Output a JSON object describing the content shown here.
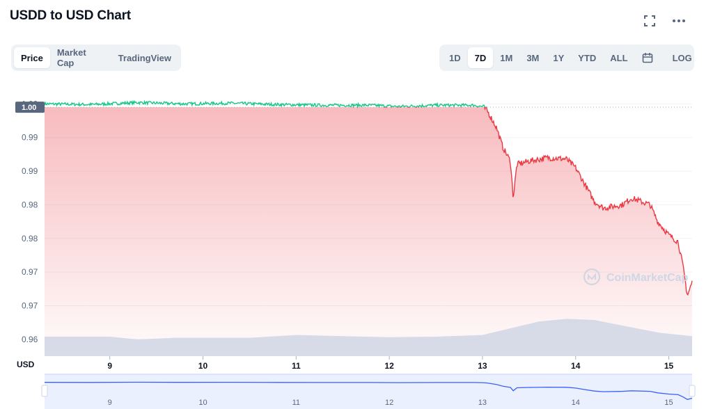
{
  "header": {
    "title": "USDD to USD Chart"
  },
  "toolbar": {
    "view_tabs": [
      "Price",
      "Market Cap",
      "TradingView"
    ],
    "active_view": "Price",
    "ranges": [
      "1D",
      "7D",
      "1M",
      "3M",
      "1Y",
      "YTD",
      "ALL"
    ],
    "active_range": "7D",
    "log_label": "LOG"
  },
  "watermark": "CoinMarketCap",
  "colors": {
    "up": "#16c784",
    "down": "#ea3943",
    "volume": "#cfd6e4",
    "navigator": "#3861fb"
  },
  "chart_data": {
    "type": "line",
    "ylabel": "USD",
    "y_ticks": [
      "1.00",
      "0.99",
      "0.99",
      "0.98",
      "0.98",
      "0.97",
      "0.97",
      "0.96"
    ],
    "y_tick_values": [
      1.0,
      0.995,
      0.99,
      0.985,
      0.98,
      0.975,
      0.97,
      0.965
    ],
    "ylim": [
      0.9625,
      1.002
    ],
    "current_price_label": "1.00",
    "reference_price": 0.9995,
    "x_ticks": [
      "9",
      "10",
      "11",
      "12",
      "13",
      "14",
      "15"
    ],
    "x_tick_days": [
      9,
      10,
      11,
      12,
      13,
      14,
      15
    ],
    "xlim": [
      8.3,
      15.25
    ],
    "series": [
      {
        "values": [
          [
            8.3,
            1.0
          ],
          [
            8.8,
            0.9999
          ],
          [
            9.3,
            1.0002
          ],
          [
            9.8,
            1.0
          ],
          [
            10.3,
            1.0001
          ],
          [
            10.8,
            0.9999
          ],
          [
            11.3,
            0.9998
          ],
          [
            11.8,
            0.9998
          ],
          [
            12.1,
            0.9996
          ],
          [
            12.5,
            0.9998
          ],
          [
            12.9,
            0.9998
          ],
          [
            13.0,
            0.9996
          ],
          [
            13.05,
            0.999
          ],
          [
            13.15,
            0.9965
          ],
          [
            13.22,
            0.9935
          ],
          [
            13.3,
            0.9915
          ],
          [
            13.33,
            0.986
          ],
          [
            13.37,
            0.991
          ],
          [
            13.5,
            0.9915
          ],
          [
            13.7,
            0.992
          ],
          [
            13.9,
            0.9918
          ],
          [
            14.0,
            0.9905
          ],
          [
            14.1,
            0.988
          ],
          [
            14.2,
            0.9855
          ],
          [
            14.3,
            0.9845
          ],
          [
            14.5,
            0.985
          ],
          [
            14.6,
            0.986
          ],
          [
            14.8,
            0.985
          ],
          [
            14.88,
            0.9825
          ],
          [
            15.0,
            0.9805
          ],
          [
            15.1,
            0.9795
          ],
          [
            15.15,
            0.976
          ],
          [
            15.2,
            0.9715
          ],
          [
            15.25,
            0.9735
          ]
        ]
      }
    ],
    "volume_levels": [
      [
        8.3,
        0.35
      ],
      [
        9.0,
        0.35
      ],
      [
        9.3,
        0.3
      ],
      [
        9.7,
        0.33
      ],
      [
        10.5,
        0.33
      ],
      [
        11.0,
        0.38
      ],
      [
        11.5,
        0.36
      ],
      [
        12.0,
        0.34
      ],
      [
        12.5,
        0.35
      ],
      [
        13.0,
        0.38
      ],
      [
        13.3,
        0.5
      ],
      [
        13.6,
        0.62
      ],
      [
        13.9,
        0.67
      ],
      [
        14.2,
        0.65
      ],
      [
        14.5,
        0.55
      ],
      [
        14.9,
        0.42
      ],
      [
        15.25,
        0.36
      ]
    ]
  }
}
